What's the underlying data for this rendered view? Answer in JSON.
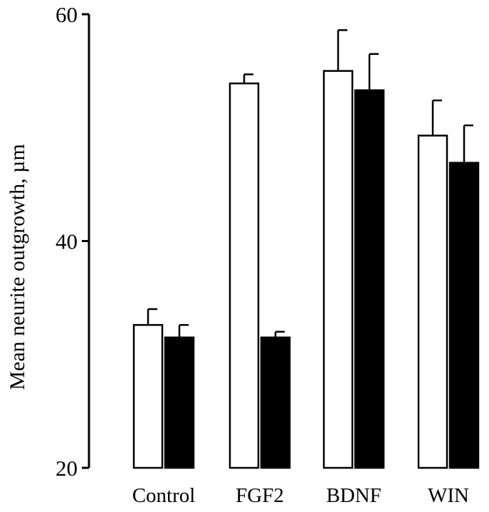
{
  "chart_data": {
    "type": "bar",
    "title": "",
    "xlabel": "",
    "ylabel": "Mean neurite outgrowth, µm",
    "ylim": [
      20,
      60
    ],
    "yticks": [
      20,
      40,
      60
    ],
    "categories": [
      "Control",
      "FGF2",
      "BDNF",
      "WIN"
    ],
    "grid": false,
    "legend": "none",
    "series": [
      {
        "fill": "#ffffff",
        "values": [
          32.6,
          53.9,
          55.0,
          49.3
        ],
        "errors": [
          1.4,
          0.8,
          3.6,
          3.1
        ]
      },
      {
        "fill": "#000000",
        "values": [
          31.5,
          31.5,
          53.3,
          46.9
        ],
        "errors": [
          1.1,
          0.5,
          3.2,
          3.3
        ]
      }
    ]
  }
}
